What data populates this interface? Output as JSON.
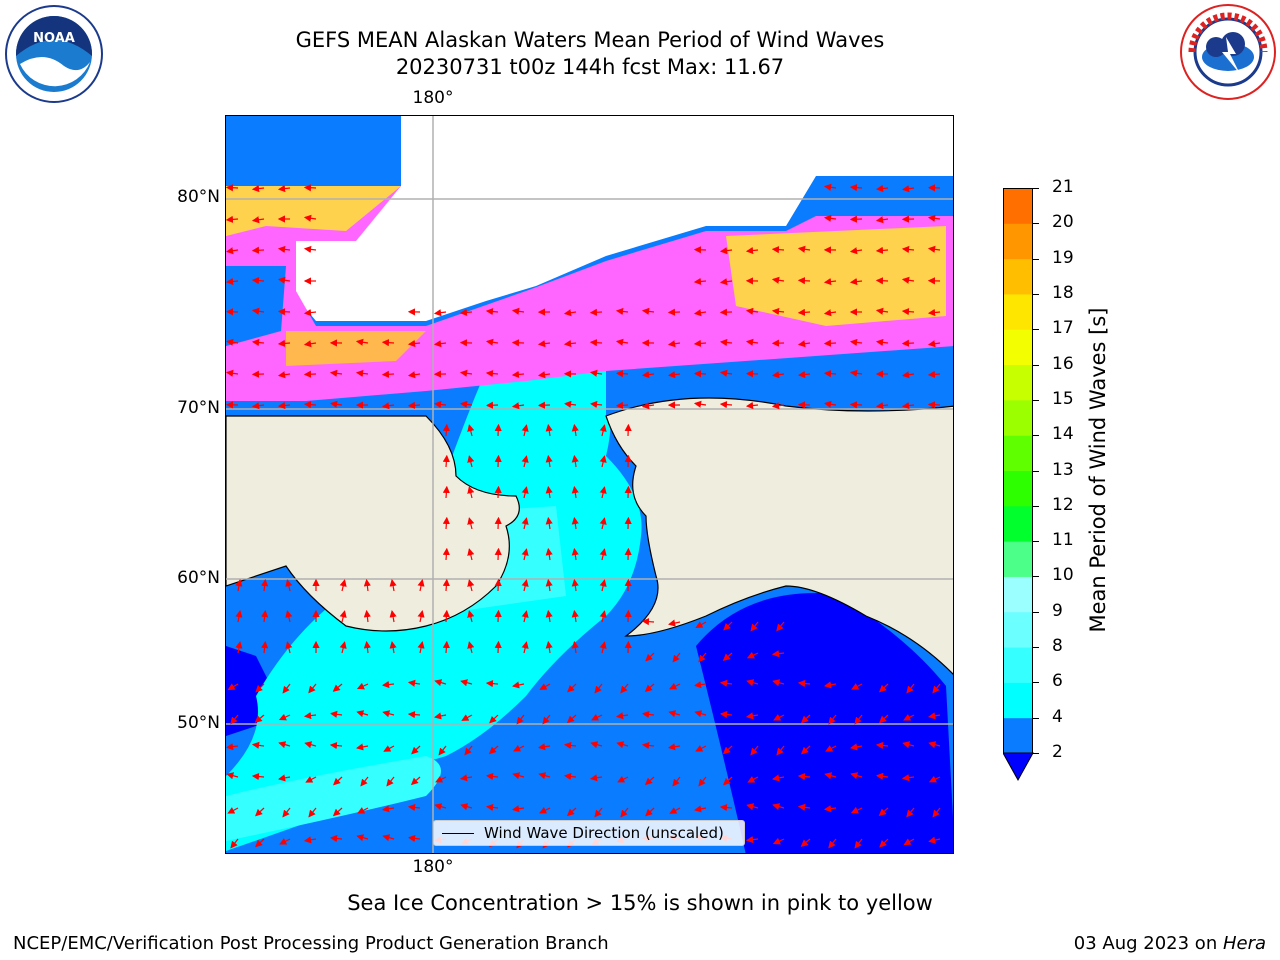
{
  "title_line1": "GEFS MEAN Alaskan Waters Mean Period of Wind Waves",
  "title_line2": "20230731 t00z 144h fcst   Max: 11.67",
  "lon_label_top": "180°",
  "lon_label_bottom": "180°",
  "lat_labels": [
    "80°N",
    "70°N",
    "60°N",
    "50°N"
  ],
  "legend_label": "Wind Wave Direction (unscaled)",
  "colorbar": {
    "label": "Mean Period of Wind Waves [s]",
    "ticks": [
      "2",
      "4",
      "6",
      "8",
      "9",
      "10",
      "11",
      "12",
      "13",
      "14",
      "15",
      "16",
      "17",
      "18",
      "19",
      "20",
      "21"
    ],
    "colors": [
      "#0a7cff",
      "#00ffff",
      "#35ffff",
      "#6bffff",
      "#9cffff",
      "#4bff89",
      "#00ff2c",
      "#2eff00",
      "#5fff00",
      "#9cff00",
      "#c8ff00",
      "#f3ff00",
      "#ffe600",
      "#ffbe00",
      "#ff9600",
      "#ff6f00",
      "#ff4800",
      "#ff0000"
    ],
    "under_color": "#0000ff"
  },
  "note": "Sea Ice Concentration > 15% is shown in pink to yellow",
  "footer_left": "NCEP/EMC/Verification Post Processing Product Generation Branch",
  "footer_right_date": "03 Aug 2023 on ",
  "footer_right_machine": "Hera",
  "logo_left": "NOAA",
  "logo_right_text": "NATIONAL WEATHER SERVICE",
  "colors": {
    "land": "#efedde",
    "ice_pink": "#ff66ff",
    "ice_yellow": "#ffd24d",
    "arrow": "#ff0000",
    "grid": "#b0b0b0"
  }
}
